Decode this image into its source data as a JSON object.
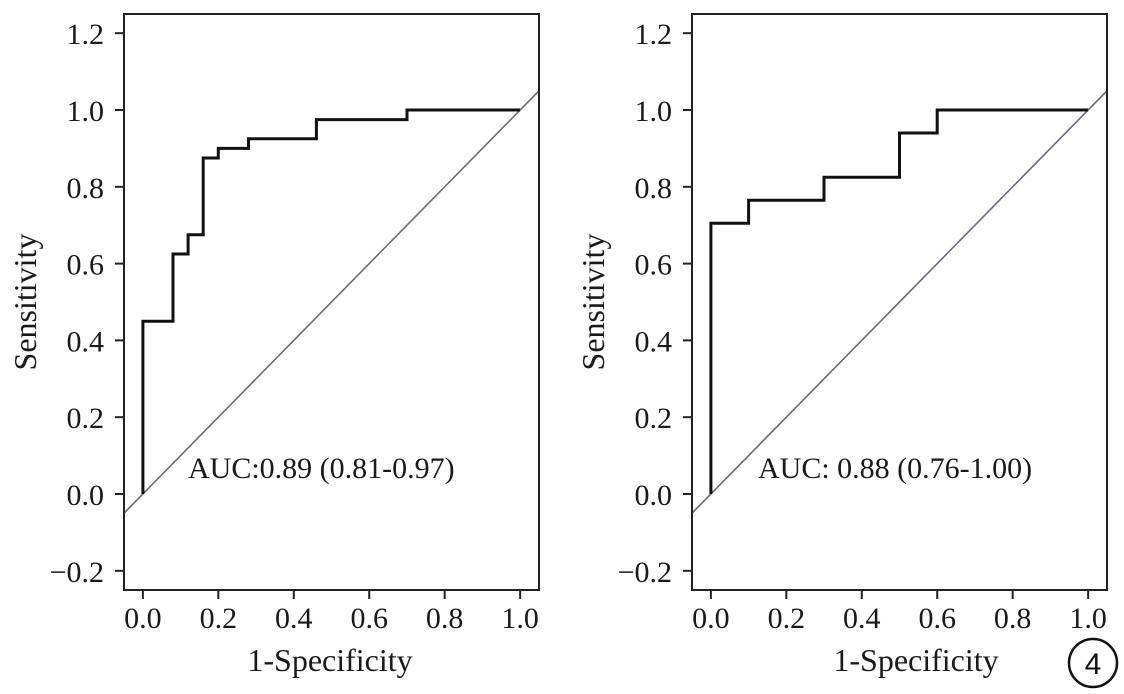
{
  "chart_data": [
    {
      "type": "line",
      "xlabel": "1-Specificity",
      "ylabel": "Sensitivity",
      "xlim": [
        -0.05,
        1.05
      ],
      "ylim": [
        -0.25,
        1.25
      ],
      "x_ticks": [
        0.0,
        0.2,
        0.4,
        0.6,
        0.8,
        1.0
      ],
      "x_tick_labels": [
        "0.0",
        "0.2",
        "0.4",
        "0.6",
        "0.8",
        "1.0"
      ],
      "y_ticks": [
        -0.2,
        0.0,
        0.2,
        0.4,
        0.6,
        0.8,
        1.0,
        1.2
      ],
      "y_tick_labels": [
        "−0.2",
        "0.0",
        "0.2",
        "0.4",
        "0.6",
        "0.8",
        "1.0",
        "1.2"
      ],
      "grid": false,
      "annotation": "AUC:0.89 (0.81-0.97)",
      "series": [
        {
          "kind": "step",
          "x": [
            0.0,
            0.0,
            0.08,
            0.08,
            0.12,
            0.12,
            0.16,
            0.16,
            0.2,
            0.2,
            0.28,
            0.28,
            0.46,
            0.46,
            0.7,
            0.7,
            1.0
          ],
          "y": [
            0.0,
            0.45,
            0.45,
            0.625,
            0.625,
            0.675,
            0.675,
            0.875,
            0.875,
            0.9,
            0.9,
            0.925,
            0.925,
            0.975,
            0.975,
            1.0,
            1.0
          ],
          "color": "#111111"
        },
        {
          "kind": "reference",
          "x": [
            -0.05,
            1.05
          ],
          "y": [
            -0.05,
            1.05
          ],
          "color": "#6a6a7a"
        }
      ]
    },
    {
      "type": "line",
      "xlabel": "1-Specificity",
      "ylabel": "Sensitivity",
      "xlim": [
        -0.05,
        1.05
      ],
      "ylim": [
        -0.25,
        1.25
      ],
      "x_ticks": [
        0.0,
        0.2,
        0.4,
        0.6,
        0.8,
        1.0
      ],
      "x_tick_labels": [
        "0.0",
        "0.2",
        "0.4",
        "0.6",
        "0.8",
        "1.0"
      ],
      "y_ticks": [
        -0.2,
        0.0,
        0.2,
        0.4,
        0.6,
        0.8,
        1.0,
        1.2
      ],
      "y_tick_labels": [
        "−0.2",
        "0.0",
        "0.2",
        "0.4",
        "0.6",
        "0.8",
        "1.0",
        "1.2"
      ],
      "grid": false,
      "annotation": "AUC: 0.88 (0.76-1.00)",
      "series": [
        {
          "kind": "step",
          "x": [
            0.0,
            0.0,
            0.1,
            0.1,
            0.3,
            0.3,
            0.5,
            0.5,
            0.6,
            0.6,
            1.0
          ],
          "y": [
            0.0,
            0.705,
            0.705,
            0.765,
            0.765,
            0.825,
            0.825,
            0.94,
            0.94,
            1.0,
            1.0
          ],
          "color": "#111111"
        },
        {
          "kind": "reference",
          "x": [
            -0.05,
            1.05
          ],
          "y": [
            -0.05,
            1.05
          ],
          "color": "#6a6a7a"
        }
      ]
    }
  ],
  "figure_badge": "4"
}
